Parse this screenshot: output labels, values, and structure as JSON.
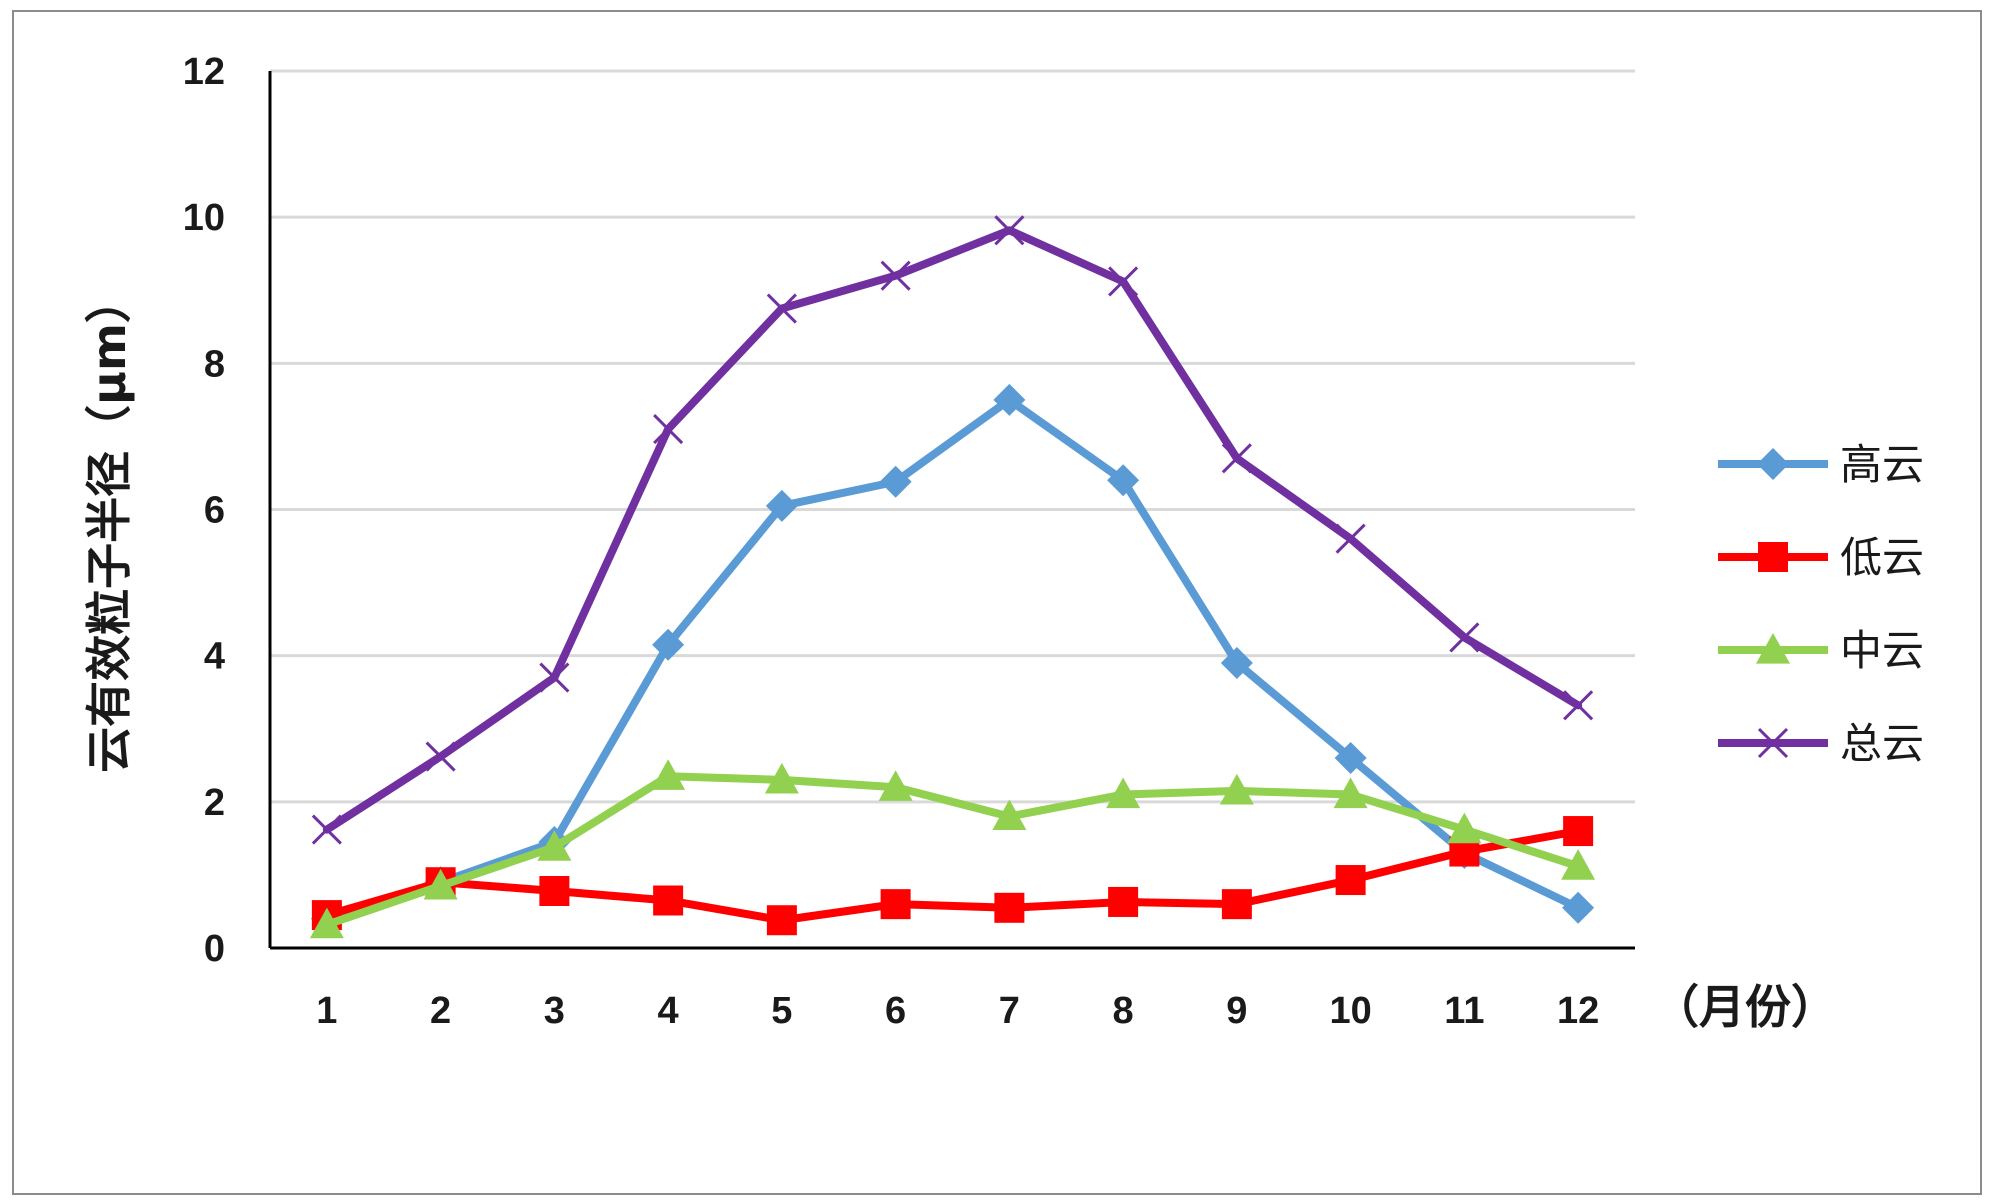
{
  "chart_data": {
    "type": "line",
    "xlabel": "（月份）",
    "ylabel": "云有效粒子半径（μm）",
    "categories": [
      "1",
      "2",
      "3",
      "4",
      "5",
      "6",
      "7",
      "8",
      "9",
      "10",
      "11",
      "12"
    ],
    "ylim": [
      0,
      12
    ],
    "yticks": [
      0,
      2,
      4,
      6,
      8,
      10,
      12
    ],
    "grid": true,
    "legend_position": "right",
    "series": [
      {
        "name": "高云",
        "color": "#5b9bd5",
        "marker": "diamond",
        "values": [
          0.4,
          0.9,
          1.45,
          4.15,
          6.05,
          6.38,
          7.5,
          6.4,
          3.9,
          2.6,
          1.3,
          0.55
        ]
      },
      {
        "name": "低云",
        "color": "#ff0000",
        "marker": "square",
        "values": [
          0.45,
          0.9,
          0.78,
          0.65,
          0.38,
          0.6,
          0.55,
          0.63,
          0.6,
          0.93,
          1.32,
          1.6
        ]
      },
      {
        "name": "中云",
        "color": "#92d050",
        "marker": "triangle",
        "values": [
          0.32,
          0.85,
          1.38,
          2.35,
          2.3,
          2.2,
          1.8,
          2.1,
          2.15,
          2.1,
          1.62,
          1.12
        ]
      },
      {
        "name": "总云",
        "color": "#7030a0",
        "marker": "x",
        "values": [
          1.62,
          2.62,
          3.7,
          7.1,
          8.75,
          9.2,
          9.82,
          9.12,
          6.7,
          5.6,
          4.25,
          3.32
        ]
      }
    ]
  }
}
